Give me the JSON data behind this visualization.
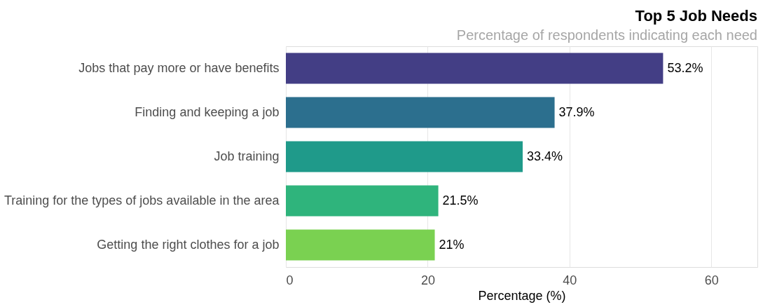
{
  "chart_data": {
    "type": "bar",
    "orientation": "horizontal",
    "title": "Top 5 Job Needs",
    "subtitle": "Percentage of respondents indicating each need",
    "xlabel": "Percentage (%)",
    "categories": [
      "Jobs that pay more or have benefits",
      "Finding and keeping a job",
      "Job training",
      "Training for the types of jobs available in the area",
      "Getting the right clothes for a job"
    ],
    "values": [
      53.2,
      37.9,
      33.4,
      21.5,
      21
    ],
    "colors": [
      "#433e85",
      "#2c6f8e",
      "#1f9a8a",
      "#2fb47c",
      "#7ad151"
    ],
    "value_labels": [
      "53.2%",
      "37.9%",
      "33.4%",
      "21.5%",
      "21%"
    ],
    "xlim": [
      0,
      66.5
    ],
    "xticks": [
      0,
      20,
      40,
      60
    ],
    "grid": "x"
  }
}
